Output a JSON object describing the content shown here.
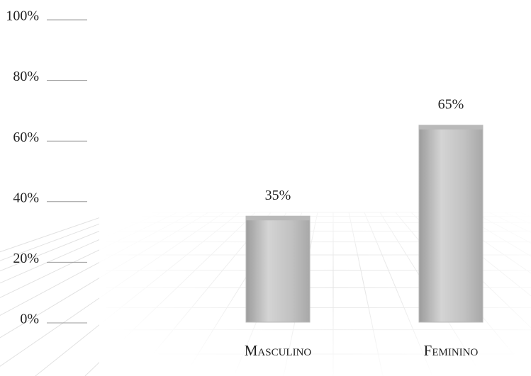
{
  "chart_data": {
    "type": "bar",
    "categories": [
      "Masculino",
      "Feminino"
    ],
    "values": [
      35,
      65
    ],
    "value_labels": [
      "35%",
      "65%"
    ],
    "color": "#b9b9b9",
    "ylim": [
      0,
      100
    ],
    "yticks": [
      {
        "value": 0,
        "label": "0%"
      },
      {
        "value": 20,
        "label": "20%"
      },
      {
        "value": 40,
        "label": "40%"
      },
      {
        "value": 60,
        "label": "60%"
      },
      {
        "value": 80,
        "label": "80%"
      },
      {
        "value": 100,
        "label": "100%"
      }
    ]
  }
}
